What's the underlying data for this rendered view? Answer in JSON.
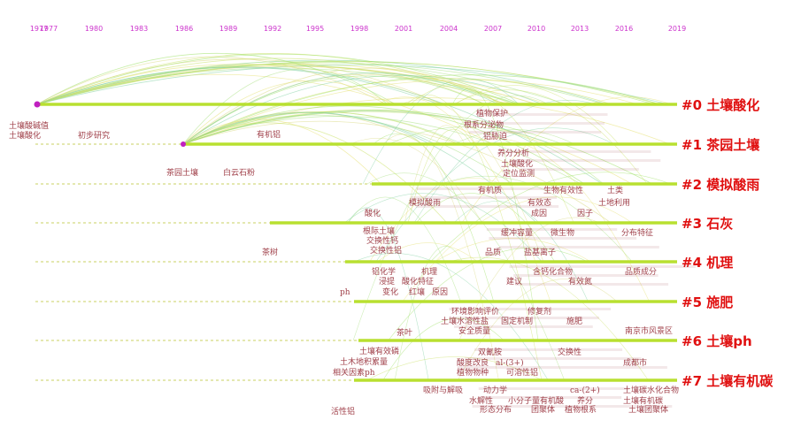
{
  "years": [
    "1977",
    "1977",
    "1980",
    "1983",
    "1986",
    "1989",
    "1992",
    "1995",
    "1998",
    "2001",
    "2004",
    "2007",
    "2010",
    "2013",
    "2016",
    "2019"
  ],
  "clusters": [
    {
      "label": "#0 土壤酸化"
    },
    {
      "label": "#1 茶园土壤"
    },
    {
      "label": "#2 模拟酸雨"
    },
    {
      "label": "#3 石灰"
    },
    {
      "label": "#4 机理"
    },
    {
      "label": "#5 施肥"
    },
    {
      "label": "#6 土壤ph"
    },
    {
      "label": "#7 土壤有机碳"
    }
  ],
  "keywords": [
    {
      "text": "土壤酸碱值"
    },
    {
      "text": "土壤酸化"
    },
    {
      "text": "初步研究"
    },
    {
      "text": "有机铝"
    },
    {
      "text": "茶园土壤"
    },
    {
      "text": "白云石粉"
    },
    {
      "text": "酸化"
    },
    {
      "text": "茶树"
    },
    {
      "text": "根际土壤"
    },
    {
      "text": "交换性钙"
    },
    {
      "text": "交换性铝"
    },
    {
      "text": "铝化学"
    },
    {
      "text": "机理"
    },
    {
      "text": "浸提"
    },
    {
      "text": "酸化特征"
    },
    {
      "text": "ph"
    },
    {
      "text": "变化"
    },
    {
      "text": "红壤"
    },
    {
      "text": "原因"
    },
    {
      "text": "茶叶"
    },
    {
      "text": "土壤有效磷"
    },
    {
      "text": "土木地积累量"
    },
    {
      "text": "相关因素ph"
    },
    {
      "text": "活性铝"
    },
    {
      "text": "植物保护"
    },
    {
      "text": "根系分泌物"
    },
    {
      "text": "铝胁迫"
    },
    {
      "text": "养分分析"
    },
    {
      "text": "土壤酸化"
    },
    {
      "text": "定位监测"
    },
    {
      "text": "模拟酸雨"
    },
    {
      "text": "有机质"
    },
    {
      "text": "生物有效性"
    },
    {
      "text": "土类"
    },
    {
      "text": "有效态"
    },
    {
      "text": "土地利用"
    },
    {
      "text": "成因"
    },
    {
      "text": "因子"
    },
    {
      "text": "缓冲容量"
    },
    {
      "text": "微生物"
    },
    {
      "text": "分布特征"
    },
    {
      "text": "品质"
    },
    {
      "text": "盐基离子"
    },
    {
      "text": "含钙化合物"
    },
    {
      "text": "品质成分"
    },
    {
      "text": "有效氮"
    },
    {
      "text": "建议"
    },
    {
      "text": "环境影响评价"
    },
    {
      "text": "修复剂"
    },
    {
      "text": "土壤水溶性盐"
    },
    {
      "text": "固定机制"
    },
    {
      "text": "施肥"
    },
    {
      "text": "安全质量"
    },
    {
      "text": "南京市风景区"
    },
    {
      "text": "双氰胺"
    },
    {
      "text": "交换性"
    },
    {
      "text": "酸度改良"
    },
    {
      "text": "al-(3+)"
    },
    {
      "text": "成都市"
    },
    {
      "text": "植物物种"
    },
    {
      "text": "可溶性铝"
    },
    {
      "text": "吸附与解吸"
    },
    {
      "text": "动力学"
    },
    {
      "text": "ca-(2+)"
    },
    {
      "text": "土壤碳水化合物"
    },
    {
      "text": "水解性"
    },
    {
      "text": "小分子量有机酸"
    },
    {
      "text": "养分"
    },
    {
      "text": "土壤有机碳"
    },
    {
      "text": "团聚体"
    },
    {
      "text": "形态分布"
    },
    {
      "text": "植物根系"
    },
    {
      "text": "土壤团聚体"
    }
  ]
}
